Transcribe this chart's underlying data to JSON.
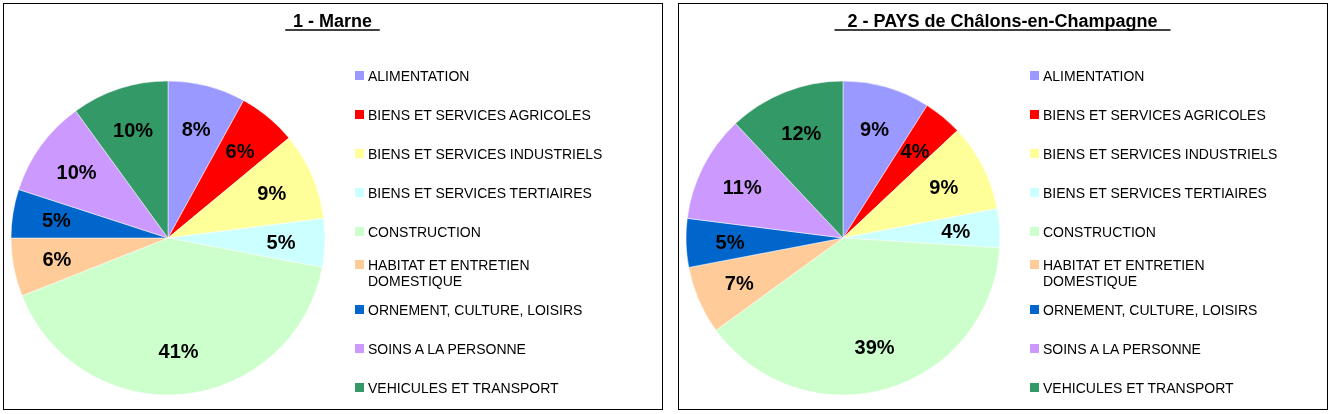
{
  "chart_data": [
    {
      "type": "pie",
      "title": "1 - Marne",
      "categories": [
        "ALIMENTATION",
        "BIENS ET SERVICES AGRICOLES",
        "BIENS ET SERVICES INDUSTRIELS",
        "BIENS ET SERVICES TERTIAIRES",
        "CONSTRUCTION",
        "HABITAT ET ENTRETIEN DOMESTIQUE",
        "ORNEMENT, CULTURE, LOISIRS",
        "SOINS A LA PERSONNE",
        "VEHICULES ET TRANSPORT"
      ],
      "values": [
        8,
        6,
        9,
        5,
        41,
        6,
        5,
        10,
        10
      ],
      "value_labels": [
        "8%",
        "6%",
        "9%",
        "5%",
        "41%",
        "6%",
        "5%",
        "10%",
        "10%"
      ],
      "colors": [
        "#9999ff",
        "#ff0000",
        "#ffff99",
        "#ccffff",
        "#ccffcc",
        "#ffcc99",
        "#0066cc",
        "#cc99ff",
        "#339966"
      ],
      "legend": "right"
    },
    {
      "type": "pie",
      "title": "2 - PAYS de Châlons-en-Champagne",
      "categories": [
        "ALIMENTATION",
        "BIENS ET SERVICES AGRICOLES",
        "BIENS ET SERVICES INDUSTRIELS",
        "BIENS ET SERVICES TERTIAIRES",
        "CONSTRUCTION",
        "HABITAT ET ENTRETIEN DOMESTIQUE",
        "ORNEMENT, CULTURE, LOISIRS",
        "SOINS A LA PERSONNE",
        "VEHICULES ET TRANSPORT"
      ],
      "values": [
        9,
        4,
        9,
        4,
        39,
        7,
        5,
        11,
        12
      ],
      "value_labels": [
        "9%",
        "4%",
        "9%",
        "4%",
        "39%",
        "7%",
        "5%",
        "11%",
        "12%"
      ],
      "colors": [
        "#9999ff",
        "#ff0000",
        "#ffff99",
        "#ccffff",
        "#ccffcc",
        "#ffcc99",
        "#0066cc",
        "#cc99ff",
        "#339966"
      ],
      "legend": "right"
    }
  ]
}
